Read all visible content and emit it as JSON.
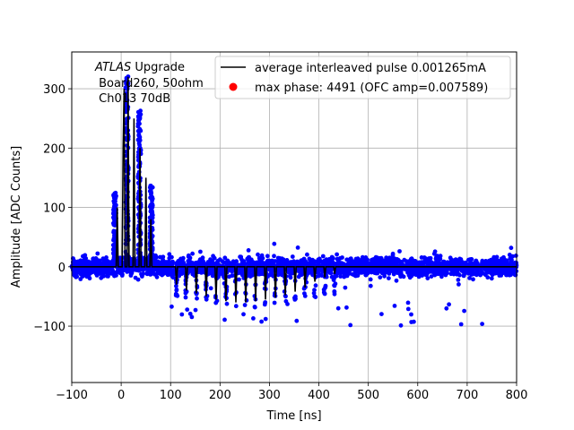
{
  "chart_data": {
    "type": "scatter",
    "xlabel": "Time [ns]",
    "ylabel": "Amplitude [ADC Counts]",
    "xlim": [
      -100,
      800
    ],
    "ylim": [
      -195,
      362
    ],
    "xticks": [
      -100,
      0,
      100,
      200,
      300,
      400,
      500,
      600,
      700,
      800
    ],
    "yticks": [
      -100,
      0,
      100,
      200,
      300
    ],
    "xtick_labels": [
      "−100",
      "0",
      "100",
      "200",
      "300",
      "400",
      "500",
      "600",
      "700",
      "800"
    ],
    "ytick_labels": [
      "−100",
      "0",
      "100",
      "200",
      "300"
    ],
    "grid": true,
    "legend_position": "upper-right",
    "annotation": {
      "line1_italic": "ATLAS",
      "line1_rest": " Upgrade",
      "line2": " Board260, 50ohm",
      "line3": " Ch013 70dB"
    },
    "series": [
      {
        "name": "average interleaved pulse 0.001265mA",
        "kind": "line",
        "color": "#000000",
        "points": [
          [
            -100,
            0
          ],
          [
            -10,
            0
          ],
          [
            -8,
            100
          ],
          [
            -6,
            0
          ],
          [
            0,
            0
          ],
          [
            2,
            0
          ],
          [
            4,
            200
          ],
          [
            6,
            300
          ],
          [
            8,
            0
          ],
          [
            12,
            0
          ],
          [
            14,
            320
          ],
          [
            16,
            0
          ],
          [
            20,
            0
          ],
          [
            24,
            0
          ],
          [
            26,
            250
          ],
          [
            28,
            0
          ],
          [
            36,
            0
          ],
          [
            38,
            200
          ],
          [
            40,
            0
          ],
          [
            48,
            0
          ],
          [
            50,
            150
          ],
          [
            52,
            0
          ],
          [
            58,
            0
          ],
          [
            60,
            80
          ],
          [
            62,
            0
          ],
          [
            110,
            0
          ],
          [
            112,
            -30
          ],
          [
            114,
            0
          ],
          [
            130,
            0
          ],
          [
            132,
            -40
          ],
          [
            134,
            0
          ],
          [
            150,
            0
          ],
          [
            152,
            -45
          ],
          [
            154,
            0
          ],
          [
            170,
            0
          ],
          [
            172,
            -50
          ],
          [
            174,
            0
          ],
          [
            190,
            0
          ],
          [
            192,
            -55
          ],
          [
            194,
            0
          ],
          [
            210,
            0
          ],
          [
            212,
            -58
          ],
          [
            214,
            0
          ],
          [
            230,
            0
          ],
          [
            232,
            -60
          ],
          [
            234,
            0
          ],
          [
            250,
            0
          ],
          [
            252,
            -60
          ],
          [
            254,
            0
          ],
          [
            270,
            0
          ],
          [
            272,
            -58
          ],
          [
            274,
            0
          ],
          [
            290,
            0
          ],
          [
            292,
            -55
          ],
          [
            294,
            0
          ],
          [
            310,
            0
          ],
          [
            312,
            -52
          ],
          [
            314,
            0
          ],
          [
            330,
            0
          ],
          [
            332,
            -48
          ],
          [
            334,
            0
          ],
          [
            350,
            0
          ],
          [
            352,
            -42
          ],
          [
            354,
            0
          ],
          [
            370,
            0
          ],
          [
            372,
            -35
          ],
          [
            374,
            0
          ],
          [
            390,
            0
          ],
          [
            392,
            -25
          ],
          [
            394,
            0
          ],
          [
            410,
            0
          ],
          [
            412,
            -18
          ],
          [
            414,
            0
          ],
          [
            430,
            0
          ],
          [
            432,
            -12
          ],
          [
            434,
            0
          ],
          [
            480,
            0
          ],
          [
            800,
            0
          ]
        ]
      },
      {
        "name": "max phase: 4491 (OFC amp=0.007589)",
        "kind": "scatter",
        "color": "#ff0000",
        "points": []
      }
    ],
    "scatter_cloud": {
      "color": "#0000ff",
      "noise_band": [
        -35,
        35
      ],
      "outlier_extent": [
        -100,
        85
      ],
      "pulses": [
        {
          "x": -13,
          "peak": 128
        },
        {
          "x": 12,
          "peak": 322
        },
        {
          "x": 37,
          "peak": 265
        },
        {
          "x": 61,
          "peak": 138
        }
      ],
      "undershoot_base": -55,
      "undershoot_range_x": [
        110,
        440
      ]
    }
  }
}
